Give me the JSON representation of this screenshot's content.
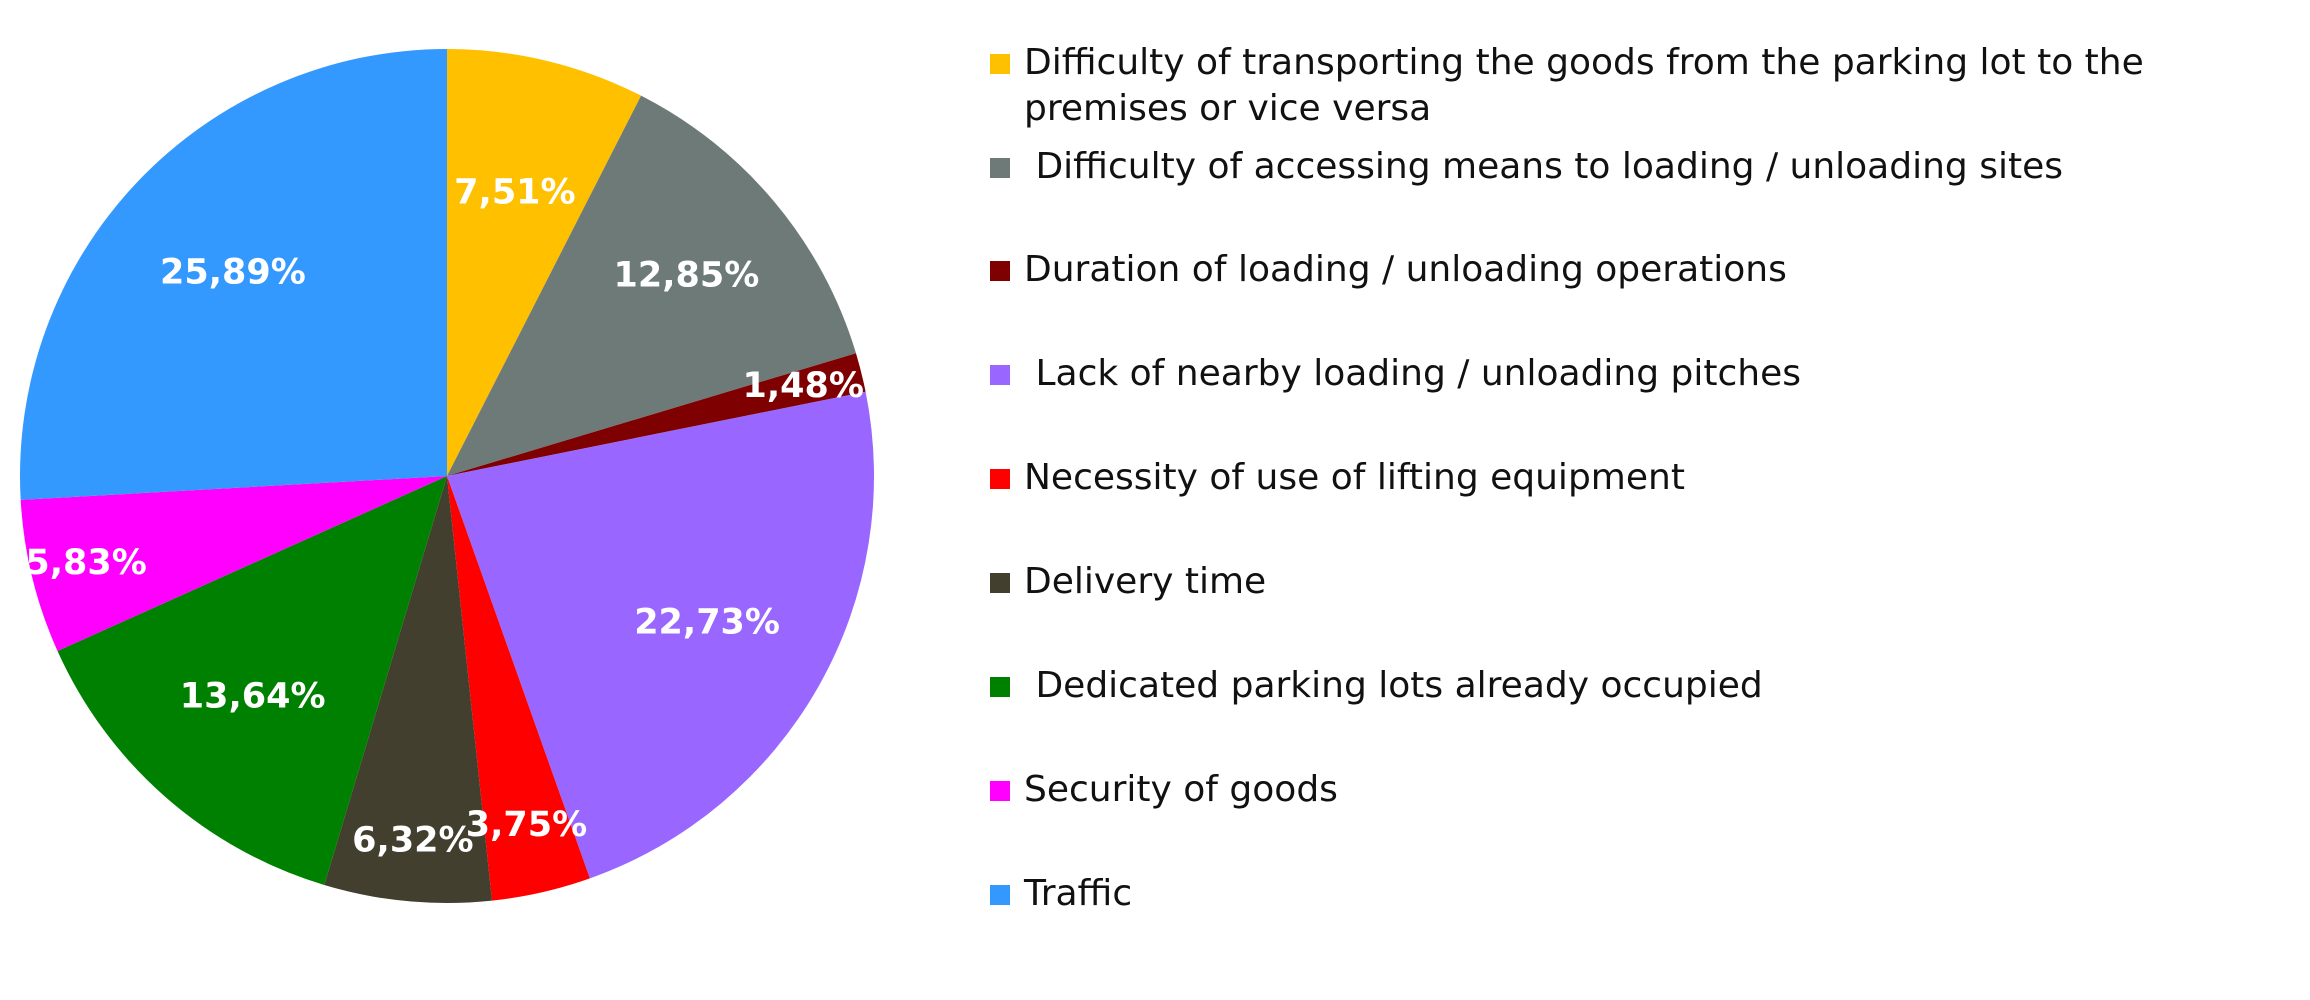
{
  "chart_data": {
    "type": "pie",
    "title": "",
    "start_angle": "top",
    "direction": "clockwise",
    "legend_position": "right",
    "slices": [
      {
        "label": "Difficulty of transporting the goods from the parking lot to the premises or vice versa",
        "value": 7.51,
        "value_label": "7,51%",
        "color": "#FFC000"
      },
      {
        "label": " Difficulty of accessing means to loading / unloading sites",
        "value": 12.85,
        "value_label": "12,85%",
        "color": "#6D7A78"
      },
      {
        "label": "Duration of loading / unloading operations",
        "value": 1.48,
        "value_label": "1,48%",
        "color": "#7F0000"
      },
      {
        "label": " Lack of nearby loading / unloading pitches",
        "value": 22.73,
        "value_label": "22,73%",
        "color": "#9966FF"
      },
      {
        "label": "Necessity of use of lifting equipment",
        "value": 3.75,
        "value_label": "3,75%",
        "color": "#FF0000"
      },
      {
        "label": "Delivery time",
        "value": 6.32,
        "value_label": "6,32%",
        "color": "#433F2F"
      },
      {
        "label": " Dedicated parking lots already occupied",
        "value": 13.64,
        "value_label": "13,64%",
        "color": "#008000"
      },
      {
        "label": "Security of goods",
        "value": 5.83,
        "value_label": "5,83%",
        "color": "#FF00FF"
      },
      {
        "label": "Traffic",
        "value": 25.89,
        "value_label": "25,89%",
        "color": "#3399FF"
      }
    ]
  }
}
